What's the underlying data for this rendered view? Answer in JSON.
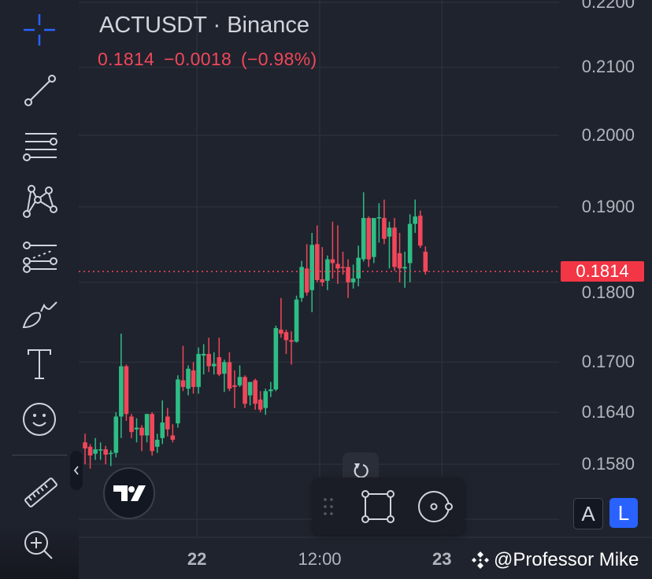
{
  "header": {
    "symbol_title": "ACTUSDT · Binance",
    "last_price": "0.1814",
    "change": "−0.0018",
    "change_pct": "(−0.98%)"
  },
  "colors": {
    "up": "#26a69a",
    "up_candle": "#2ebd85",
    "down": "#f0475a",
    "accent": "#2962ff",
    "background": "#1f232d"
  },
  "sidebar": {
    "tools": [
      {
        "icon": "crosshair-icon"
      },
      {
        "icon": "trend-line-icon"
      },
      {
        "icon": "horizontal-lines-icon"
      },
      {
        "icon": "pattern-icon"
      },
      {
        "icon": "fib-retracement-icon"
      },
      {
        "icon": "brush-icon"
      },
      {
        "icon": "text-icon"
      },
      {
        "icon": "emoji-icon"
      },
      {
        "icon": "ruler-icon"
      },
      {
        "icon": "zoom-in-icon"
      }
    ]
  },
  "price_axis": {
    "labels": [
      "0.2200",
      "0.2100",
      "0.2000",
      "0.1900",
      "0.1800",
      "0.1700",
      "0.1640",
      "0.1580"
    ],
    "last_price_badge": "0.1814",
    "scale": "log"
  },
  "time_axis": {
    "labels": [
      {
        "text": "22",
        "bold": true,
        "candle_index": 21.7
      },
      {
        "text": "12:00",
        "bold": false,
        "candle_index": 45.5
      },
      {
        "text": "23",
        "bold": true,
        "candle_index": 69.2
      }
    ]
  },
  "scale_buttons": {
    "auto": "A",
    "log": "L",
    "log_active": true
  },
  "watermark": "@Professor Mike",
  "chart_data": {
    "type": "candlestick",
    "symbol": "ACTUSDT",
    "exchange": "Binance",
    "last_price": 0.1814,
    "y_scale": "log",
    "ylim": [
      0.1505,
      0.2205
    ],
    "grid": true,
    "ohlc": [
      [
        0.1605,
        0.1615,
        0.158,
        0.1598
      ],
      [
        0.16,
        0.1603,
        0.1575,
        0.159
      ],
      [
        0.1592,
        0.161,
        0.1585,
        0.1597
      ],
      [
        0.1596,
        0.1605,
        0.1585,
        0.1597
      ],
      [
        0.1597,
        0.1601,
        0.158,
        0.1591
      ],
      [
        0.1592,
        0.1596,
        0.1578,
        0.1593
      ],
      [
        0.1593,
        0.164,
        0.1588,
        0.1635
      ],
      [
        0.1635,
        0.1735,
        0.161,
        0.1695
      ],
      [
        0.1695,
        0.1697,
        0.163,
        0.1638
      ],
      [
        0.1635,
        0.1638,
        0.161,
        0.1617
      ],
      [
        0.162,
        0.1633,
        0.1605,
        0.1622
      ],
      [
        0.1622,
        0.1625,
        0.1595,
        0.1613
      ],
      [
        0.1613,
        0.1638,
        0.1605,
        0.1638
      ],
      [
        0.1638,
        0.164,
        0.159,
        0.1595
      ],
      [
        0.16,
        0.1615,
        0.1593,
        0.1608
      ],
      [
        0.161,
        0.1654,
        0.1603,
        0.1628
      ],
      [
        0.1635,
        0.1645,
        0.1612,
        0.162
      ],
      [
        0.1613,
        0.1626,
        0.1605,
        0.1608
      ],
      [
        0.1627,
        0.1684,
        0.1622,
        0.1679
      ],
      [
        0.1678,
        0.172,
        0.1665,
        0.167
      ],
      [
        0.1668,
        0.1696,
        0.166,
        0.1692
      ],
      [
        0.169,
        0.17,
        0.1662,
        0.167
      ],
      [
        0.167,
        0.1718,
        0.1662,
        0.171
      ],
      [
        0.1708,
        0.1722,
        0.1685,
        0.171
      ],
      [
        0.171,
        0.173,
        0.1688,
        0.1695
      ],
      [
        0.1695,
        0.1712,
        0.1685,
        0.1698
      ],
      [
        0.1706,
        0.173,
        0.1683,
        0.1685
      ],
      [
        0.1686,
        0.1703,
        0.1664,
        0.17
      ],
      [
        0.17,
        0.1712,
        0.1665,
        0.1668
      ],
      [
        0.1672,
        0.169,
        0.1645,
        0.167
      ],
      [
        0.1672,
        0.1696,
        0.167,
        0.1682
      ],
      [
        0.1682,
        0.1684,
        0.1645,
        0.165
      ],
      [
        0.166,
        0.1676,
        0.1648,
        0.1676
      ],
      [
        0.1678,
        0.168,
        0.1643,
        0.165
      ],
      [
        0.1655,
        0.1665,
        0.164,
        0.1643
      ],
      [
        0.1645,
        0.1668,
        0.1637,
        0.1665
      ],
      [
        0.1665,
        0.1676,
        0.1658,
        0.1667
      ],
      [
        0.1667,
        0.1745,
        0.1665,
        0.1742
      ],
      [
        0.174,
        0.178,
        0.173,
        0.1735
      ],
      [
        0.1737,
        0.174,
        0.171,
        0.1727
      ],
      [
        0.1727,
        0.1738,
        0.1697,
        0.1725
      ],
      [
        0.1725,
        0.1783,
        0.1724,
        0.1778
      ],
      [
        0.178,
        0.1828,
        0.1775,
        0.182
      ],
      [
        0.1818,
        0.185,
        0.1783,
        0.1787
      ],
      [
        0.179,
        0.1865,
        0.1762,
        0.1849
      ],
      [
        0.185,
        0.1875,
        0.18,
        0.1803
      ],
      [
        0.1804,
        0.1846,
        0.1795,
        0.18
      ],
      [
        0.1802,
        0.1835,
        0.179,
        0.183
      ],
      [
        0.183,
        0.188,
        0.1805,
        0.1825
      ],
      [
        0.1824,
        0.1875,
        0.1798,
        0.1818
      ],
      [
        0.182,
        0.184,
        0.181,
        0.1819
      ],
      [
        0.182,
        0.183,
        0.178,
        0.18
      ],
      [
        0.18,
        0.1823,
        0.1792,
        0.1805
      ],
      [
        0.1805,
        0.1848,
        0.1795,
        0.1832
      ],
      [
        0.183,
        0.192,
        0.1827,
        0.1885
      ],
      [
        0.1885,
        0.1887,
        0.182,
        0.183
      ],
      [
        0.1833,
        0.1885,
        0.1825,
        0.1885
      ],
      [
        0.1885,
        0.1905,
        0.1852,
        0.1886
      ],
      [
        0.1885,
        0.191,
        0.185,
        0.1857
      ],
      [
        0.186,
        0.188,
        0.1818,
        0.1872
      ],
      [
        0.1872,
        0.1885,
        0.1815,
        0.182
      ],
      [
        0.1838,
        0.1865,
        0.18,
        0.1818
      ],
      [
        0.1818,
        0.184,
        0.1793,
        0.182
      ],
      [
        0.1825,
        0.189,
        0.18,
        0.1877
      ],
      [
        0.1877,
        0.191,
        0.1865,
        0.1887
      ],
      [
        0.1888,
        0.1895,
        0.1845,
        0.1848
      ],
      [
        0.184,
        0.1847,
        0.181,
        0.1814
      ]
    ]
  }
}
